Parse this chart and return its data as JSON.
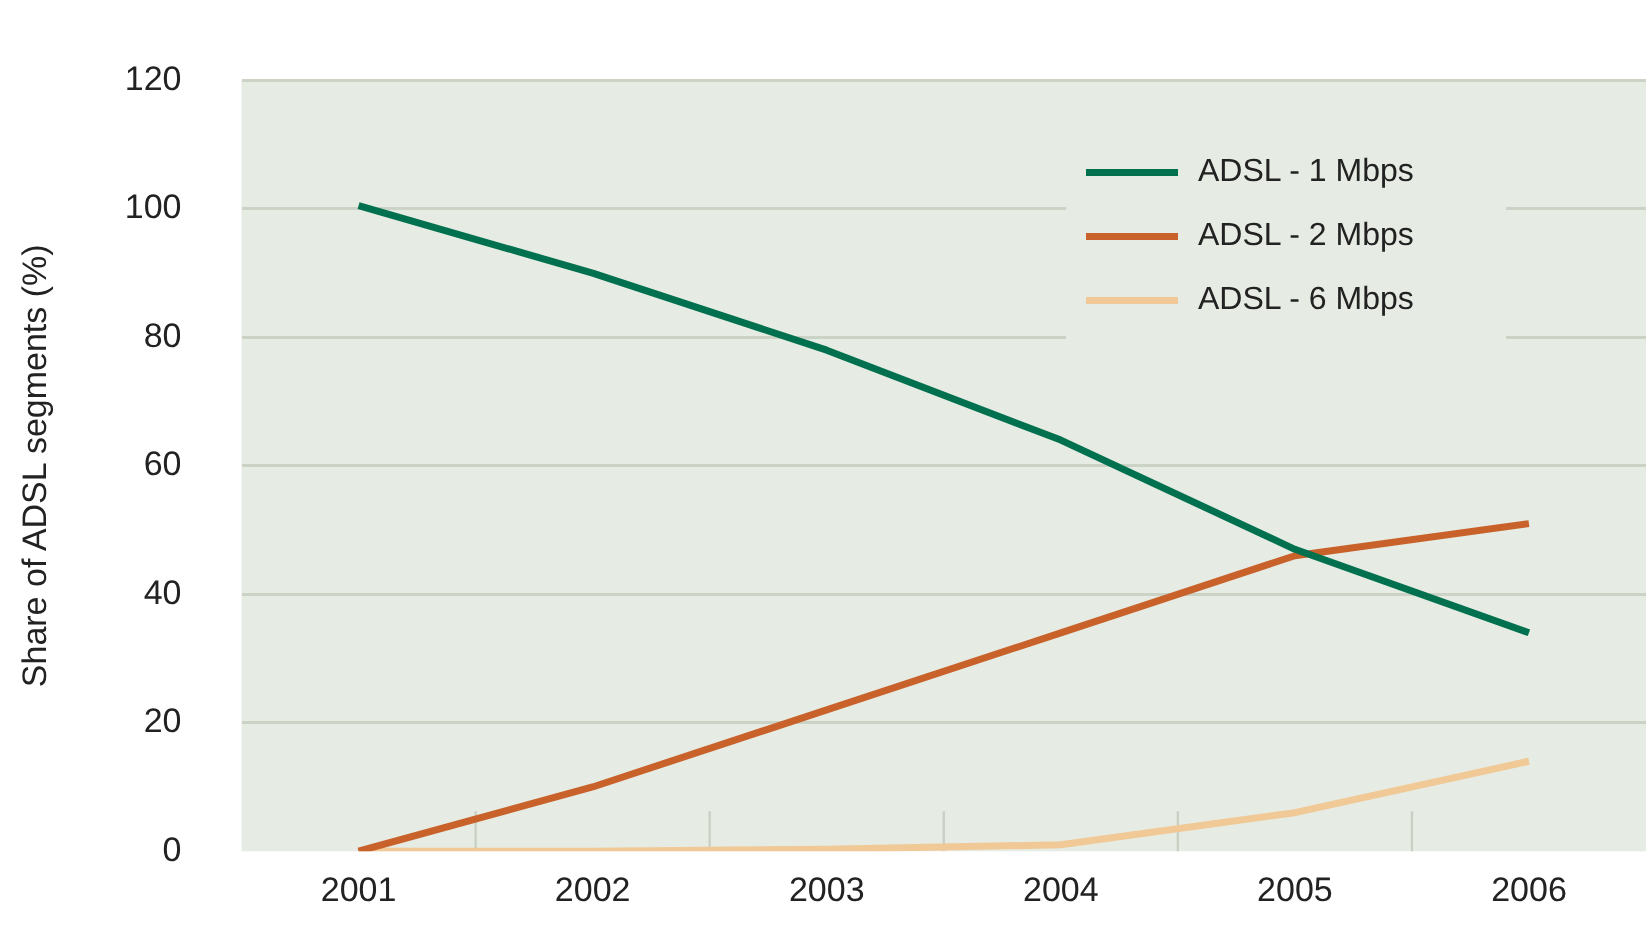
{
  "chart_data": {
    "type": "line",
    "ylabel": "Share of ADSL segments (%)",
    "categories": [
      "2001",
      "2002",
      "2003",
      "2004",
      "2005",
      "2006"
    ],
    "series": [
      {
        "name": "ADSL - 1 Mbps",
        "color": "#00704f",
        "values": [
          100.5,
          90,
          78,
          64,
          47,
          34
        ]
      },
      {
        "name": "ADSL - 2 Mbps",
        "color": "#c8622a",
        "values": [
          0,
          10,
          22,
          34,
          46,
          51
        ]
      },
      {
        "name": "ADSL - 6 Mbps",
        "color": "#f0c996",
        "values": [
          0,
          0,
          0.3,
          1,
          6,
          14
        ]
      }
    ],
    "ylim": [
      0,
      120
    ],
    "yticks": [
      0,
      20,
      40,
      60,
      80,
      100,
      120
    ],
    "grid": "y",
    "legend": "top right",
    "marker": "none",
    "line_style": "solid"
  }
}
